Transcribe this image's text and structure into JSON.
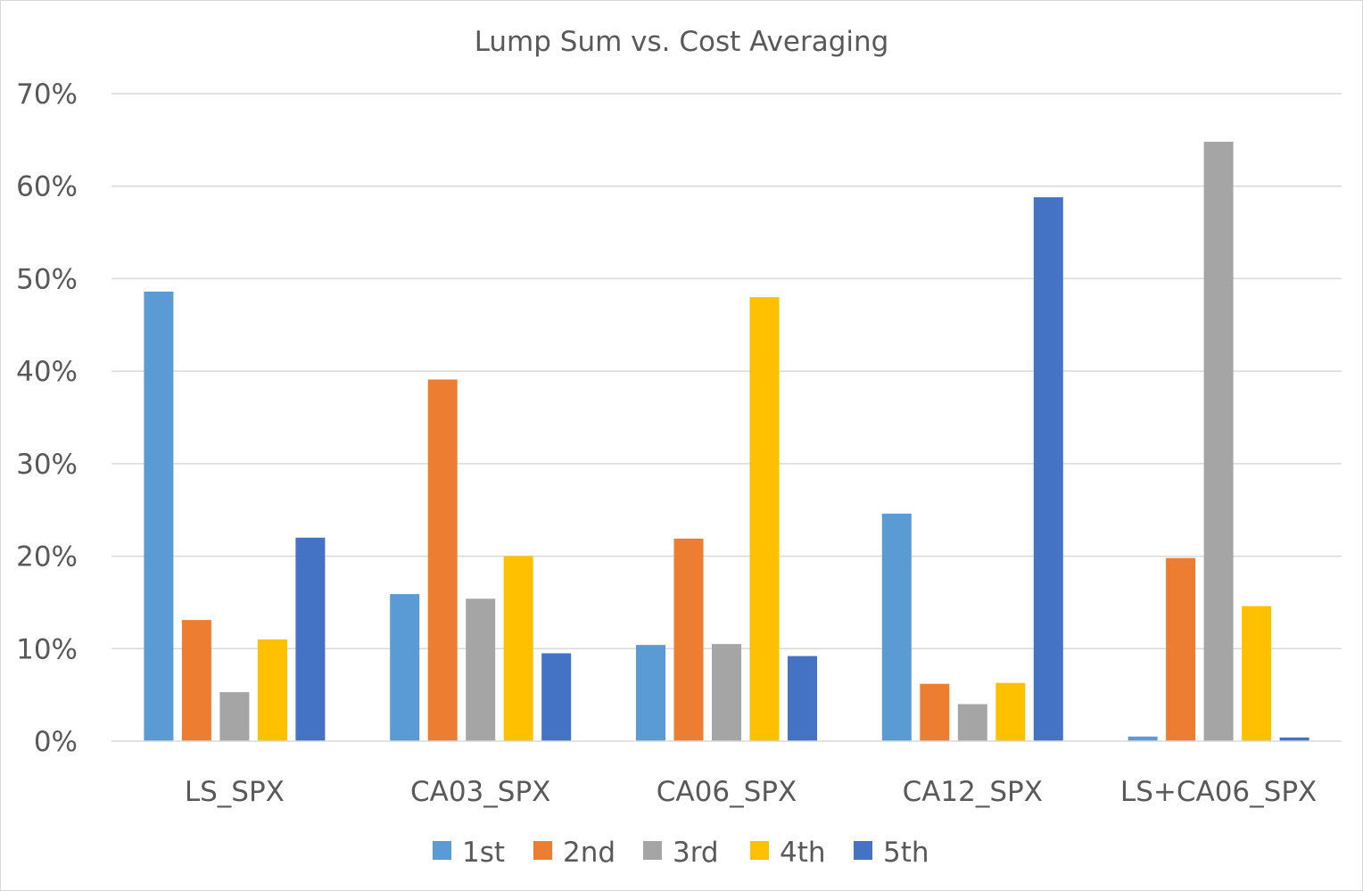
{
  "chart_data": {
    "type": "bar",
    "title": "Lump Sum vs. Cost Averaging",
    "xlabel": "",
    "ylabel": "",
    "categories": [
      "LS_SPX",
      "CA03_SPX",
      "CA06_SPX",
      "CA12_SPX",
      "LS+CA06_SPX"
    ],
    "y_ticks": [
      "0%",
      "10%",
      "20%",
      "30%",
      "40%",
      "50%",
      "60%",
      "70%"
    ],
    "ylim": [
      0,
      70
    ],
    "y_unit": "%",
    "grid": true,
    "legend_position": "bottom",
    "series": [
      {
        "name": "1st",
        "color": "#5b9bd5",
        "values": [
          48.6,
          15.9,
          10.4,
          24.6,
          0.5
        ]
      },
      {
        "name": "2nd",
        "color": "#ed7d31",
        "values": [
          13.1,
          39.1,
          21.9,
          6.2,
          19.8
        ]
      },
      {
        "name": "3rd",
        "color": "#a5a5a5",
        "values": [
          5.3,
          15.4,
          10.5,
          4.0,
          64.8
        ]
      },
      {
        "name": "4th",
        "color": "#ffc000",
        "values": [
          11.0,
          20.0,
          48.0,
          6.3,
          14.6
        ]
      },
      {
        "name": "5th",
        "color": "#4472c4",
        "values": [
          22.0,
          9.5,
          9.2,
          58.8,
          0.4
        ]
      }
    ]
  }
}
